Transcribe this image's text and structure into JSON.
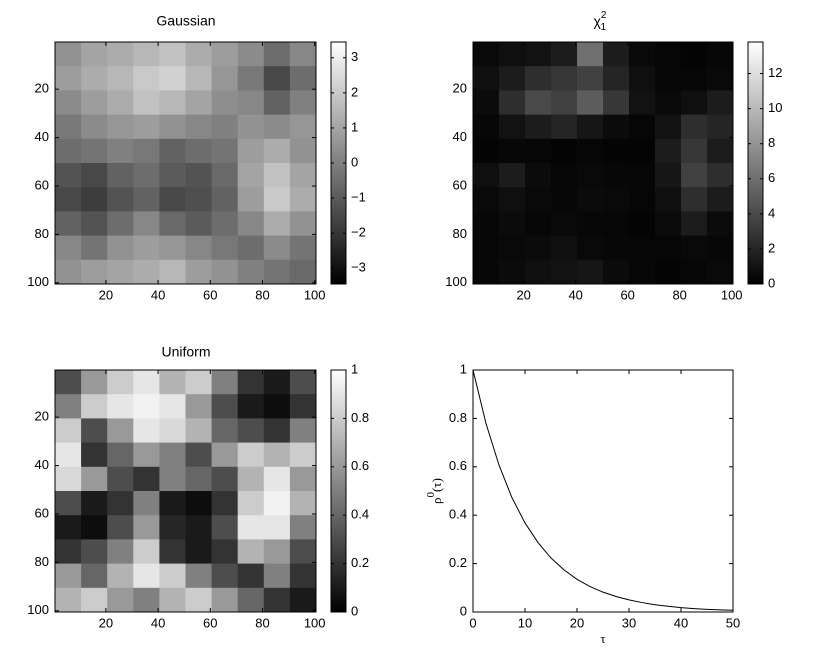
{
  "chart_data": [
    {
      "type": "heatmap",
      "title": "Gaussian",
      "colormap": "gray",
      "xlim": [
        0.5,
        100.5
      ],
      "ylim": [
        0.5,
        100.5
      ],
      "y_reversed": true,
      "xticks": [
        20,
        40,
        60,
        80,
        100
      ],
      "yticks": [
        20,
        40,
        60,
        80,
        100
      ],
      "clim": [
        -3.45,
        3.45
      ],
      "cticks": [
        {
          "value": -3,
          "label": "−3"
        },
        {
          "value": -2,
          "label": "−2"
        },
        {
          "value": -1,
          "label": "−1"
        },
        0,
        1,
        2,
        3
      ],
      "z": [
        [
          0.5,
          1.0,
          1.2,
          1.5,
          1.8,
          1.2,
          0.8,
          0.3,
          -0.5,
          0.2
        ],
        [
          0.8,
          1.2,
          1.5,
          2.0,
          2.2,
          1.5,
          0.6,
          -0.2,
          -1.5,
          -0.5
        ],
        [
          0.3,
          0.8,
          1.2,
          1.8,
          1.5,
          1.0,
          0.4,
          0.2,
          -0.8,
          0.0
        ],
        [
          -0.2,
          0.3,
          0.6,
          0.8,
          0.5,
          0.2,
          0.0,
          0.5,
          0.3,
          0.6
        ],
        [
          -0.5,
          -0.3,
          0.0,
          -0.2,
          -0.8,
          -0.5,
          -0.3,
          0.8,
          1.2,
          0.5
        ],
        [
          -1.2,
          -1.5,
          -0.8,
          -0.5,
          -1.0,
          -1.2,
          -0.6,
          1.0,
          1.8,
          1.0
        ],
        [
          -1.5,
          -1.8,
          -1.2,
          -0.8,
          -1.5,
          -1.3,
          -0.8,
          0.8,
          2.0,
          1.2
        ],
        [
          -0.8,
          -1.2,
          -0.5,
          0.2,
          -0.6,
          -1.0,
          -0.5,
          0.2,
          1.2,
          0.5
        ],
        [
          0.2,
          -0.3,
          0.5,
          0.8,
          0.6,
          0.2,
          -0.2,
          -0.5,
          0.3,
          -0.3
        ],
        [
          0.5,
          0.8,
          1.0,
          1.2,
          1.5,
          0.8,
          0.5,
          0.0,
          -0.3,
          -0.6
        ]
      ]
    },
    {
      "type": "heatmap",
      "title": "χ",
      "title_sup": "2",
      "title_sub": "1",
      "colormap": "gray",
      "xlim": [
        0.5,
        100.5
      ],
      "ylim": [
        0.5,
        100.5
      ],
      "y_reversed": true,
      "xticks": [
        20,
        40,
        60,
        80,
        100
      ],
      "yticks": [
        20,
        40,
        60,
        80,
        100
      ],
      "clim": [
        0,
        13.8
      ],
      "cticks": [
        0,
        2,
        4,
        6,
        8,
        10,
        12
      ],
      "z": [
        [
          0.5,
          0.8,
          1.0,
          1.5,
          6.0,
          1.5,
          0.5,
          0.3,
          0.2,
          0.4
        ],
        [
          0.8,
          1.5,
          2.5,
          3.0,
          3.5,
          2.0,
          0.8,
          0.4,
          0.3,
          0.5
        ],
        [
          0.6,
          2.5,
          4.0,
          3.5,
          5.0,
          3.0,
          1.0,
          0.5,
          0.8,
          1.5
        ],
        [
          0.3,
          1.0,
          1.5,
          2.0,
          1.2,
          0.6,
          0.3,
          1.0,
          2.5,
          2.0
        ],
        [
          0.2,
          0.4,
          0.3,
          0.2,
          0.3,
          0.2,
          0.2,
          1.5,
          3.0,
          1.5
        ],
        [
          0.8,
          1.5,
          0.6,
          0.3,
          0.5,
          0.4,
          0.3,
          1.2,
          3.5,
          2.5
        ],
        [
          0.5,
          0.8,
          0.5,
          0.4,
          0.6,
          0.5,
          0.3,
          0.8,
          2.5,
          1.5
        ],
        [
          0.4,
          0.6,
          0.3,
          0.5,
          0.4,
          0.3,
          0.2,
          0.6,
          1.5,
          0.6
        ],
        [
          0.3,
          0.5,
          0.6,
          0.8,
          0.5,
          0.4,
          0.3,
          0.3,
          0.5,
          0.4
        ],
        [
          0.4,
          0.6,
          0.8,
          1.0,
          1.2,
          0.6,
          0.4,
          0.2,
          0.3,
          0.5
        ]
      ]
    },
    {
      "type": "heatmap",
      "title": "Uniform",
      "colormap": "gray",
      "xlim": [
        0.5,
        100.5
      ],
      "ylim": [
        0.5,
        100.5
      ],
      "y_reversed": true,
      "xticks": [
        20,
        40,
        60,
        80,
        100
      ],
      "yticks": [
        20,
        40,
        60,
        80,
        100
      ],
      "clim": [
        0,
        1
      ],
      "cticks": [
        0,
        0.2,
        0.4,
        0.6,
        0.8,
        1
      ],
      "z": [
        [
          0.3,
          0.6,
          0.8,
          0.9,
          0.7,
          0.8,
          0.5,
          0.2,
          0.1,
          0.3
        ],
        [
          0.5,
          0.8,
          0.9,
          0.95,
          0.9,
          0.6,
          0.3,
          0.1,
          0.05,
          0.2
        ],
        [
          0.8,
          0.3,
          0.6,
          0.9,
          0.85,
          0.7,
          0.4,
          0.3,
          0.2,
          0.5
        ],
        [
          0.9,
          0.2,
          0.4,
          0.6,
          0.5,
          0.3,
          0.6,
          0.8,
          0.7,
          0.8
        ],
        [
          0.85,
          0.6,
          0.3,
          0.2,
          0.5,
          0.4,
          0.3,
          0.7,
          0.9,
          0.6
        ],
        [
          0.3,
          0.1,
          0.2,
          0.5,
          0.1,
          0.05,
          0.2,
          0.8,
          0.95,
          0.7
        ],
        [
          0.1,
          0.05,
          0.3,
          0.6,
          0.15,
          0.1,
          0.3,
          0.9,
          0.9,
          0.5
        ],
        [
          0.2,
          0.3,
          0.5,
          0.8,
          0.2,
          0.1,
          0.2,
          0.7,
          0.6,
          0.3
        ],
        [
          0.6,
          0.4,
          0.7,
          0.9,
          0.8,
          0.5,
          0.3,
          0.2,
          0.5,
          0.2
        ],
        [
          0.7,
          0.8,
          0.6,
          0.5,
          0.7,
          0.8,
          0.6,
          0.4,
          0.2,
          0.1
        ]
      ]
    },
    {
      "type": "line",
      "xlabel": "τ",
      "ylabel": "ρ",
      "ylabel_sup": "0",
      "ylabel_rest": "(τ)",
      "color": "#000000",
      "xlim": [
        0,
        50
      ],
      "ylim": [
        0,
        1
      ],
      "xticks": [
        0,
        10,
        20,
        30,
        40,
        50
      ],
      "yticks": [
        0,
        0.2,
        0.4,
        0.6,
        0.8,
        1
      ],
      "x": [
        0,
        2.5,
        5,
        7.5,
        10,
        12.5,
        15,
        17.5,
        20,
        22.5,
        25,
        27.5,
        30,
        32.5,
        35,
        37.5,
        40,
        42.5,
        45,
        47.5,
        50
      ],
      "values": [
        1,
        0.779,
        0.607,
        0.472,
        0.368,
        0.287,
        0.223,
        0.174,
        0.135,
        0.105,
        0.082,
        0.064,
        0.05,
        0.039,
        0.03,
        0.024,
        0.018,
        0.014,
        0.011,
        0.009,
        0.007
      ]
    }
  ]
}
